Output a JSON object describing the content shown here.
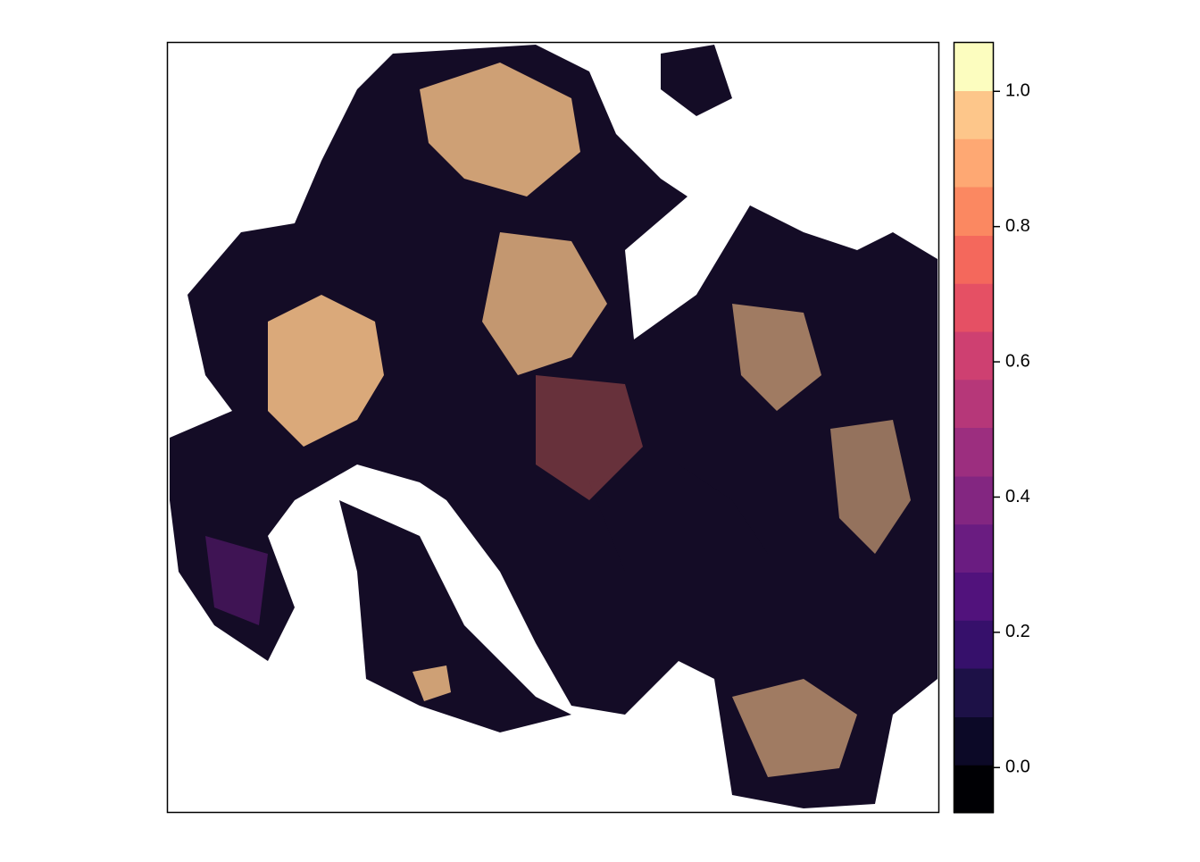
{
  "chart_data": {
    "type": "raster",
    "colorbar": {
      "breaks": [
        -0.067,
        0.004,
        0.075,
        0.147,
        0.218,
        0.289,
        0.36,
        0.431,
        0.503,
        0.574,
        0.645,
        0.716,
        0.787,
        0.859,
        0.93,
        1.001,
        1.073
      ],
      "colors": [
        "#000004",
        "#0c0927",
        "#1d1147",
        "#36106b",
        "#51127c",
        "#6a1c81",
        "#832681",
        "#9c2e7f",
        "#b63779",
        "#ce4071",
        "#e55064",
        "#f4685c",
        "#fb8861",
        "#fea873",
        "#fdc68a",
        "#fcfdbf"
      ],
      "lim": [
        -0.067,
        1.073
      ],
      "ticks": [
        {
          "value": 0,
          "label": "0.0"
        },
        0.2,
        0.4,
        0.6,
        0.8,
        {
          "value": 1,
          "label": "1.0"
        }
      ]
    }
  }
}
